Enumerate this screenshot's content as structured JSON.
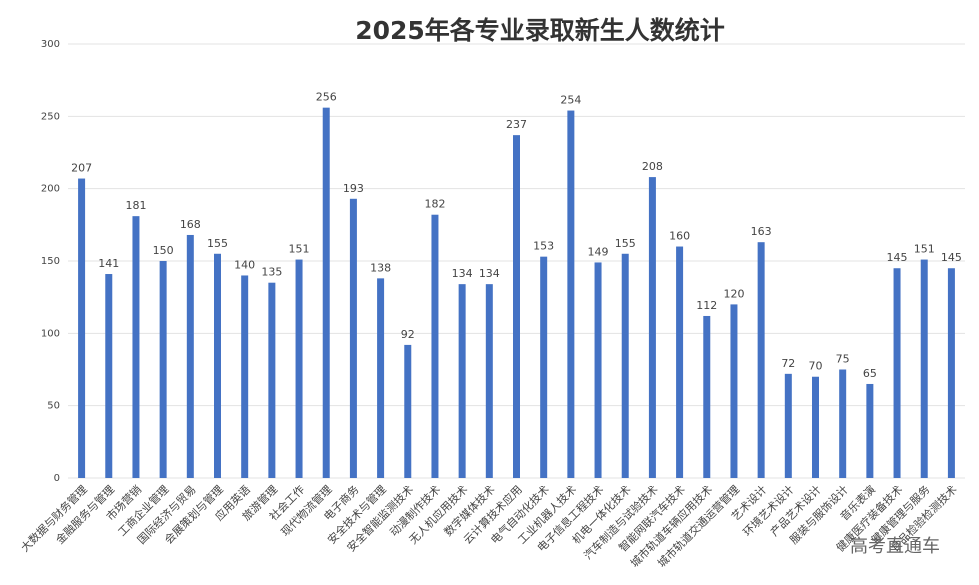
{
  "chart_data": {
    "type": "bar",
    "title": "2025年各专业录取新生人数统计",
    "categories": [
      "大数据与财务管理",
      "金融服务与管理",
      "市场营销",
      "工商企业管理",
      "国际经济与贸易",
      "会展策划与管理",
      "应用英语",
      "旅游管理",
      "社会工作",
      "现代物流管理",
      "电子商务",
      "安全技术与管理",
      "安全智能监测技术",
      "动漫制作技术",
      "无人机应用技术",
      "数字媒体技术",
      "云计算技术应用",
      "电气自动化技术",
      "工业机器人技术",
      "电子信息工程技术",
      "机电一体化技术",
      "汽车制造与试验技术",
      "智能网联汽车技术",
      "城市轨道车辆应用技术",
      "城市轨道交通运营管理",
      "艺术设计",
      "环境艺术设计",
      "产品艺术设计",
      "服装与服饰设计",
      "音乐表演",
      "健康医疗装备技术",
      "健康管理与服务",
      "食品检验检测技术"
    ],
    "values": [
      207,
      141,
      181,
      150,
      168,
      155,
      140,
      135,
      151,
      256,
      193,
      138,
      92,
      182,
      134,
      134,
      237,
      153,
      254,
      149,
      155,
      208,
      160,
      112,
      120,
      163,
      72,
      70,
      75,
      65,
      145,
      151,
      145
    ],
    "color": "#4472c4",
    "ylim": [
      0,
      300
    ],
    "yticks": [
      0,
      50,
      100,
      150,
      200,
      250,
      300
    ],
    "grid": true,
    "watermark": "高考直通车"
  }
}
